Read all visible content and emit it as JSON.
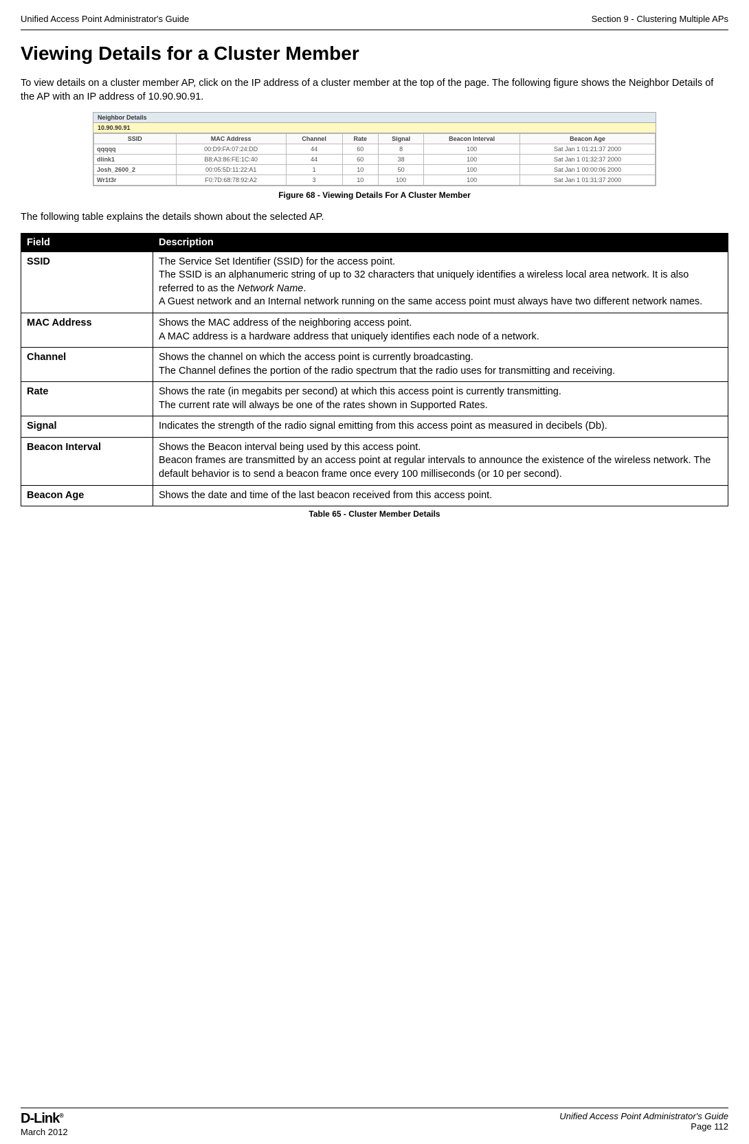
{
  "header": {
    "left": "Unified Access Point Administrator's Guide",
    "right": "Section 9 - Clustering Multiple APs"
  },
  "title": "Viewing Details for a Cluster Member",
  "intro": "To view details on a cluster member AP, click on the IP address of a cluster member at the top of the page. The following figure shows the Neighbor Details of the AP with an IP address of 10.90.90.91.",
  "figure": {
    "title": "Neighbor Details",
    "ip": "10.90.90.91",
    "cols": [
      "SSID",
      "MAC Address",
      "Channel",
      "Rate",
      "Signal",
      "Beacon Interval",
      "Beacon Age"
    ],
    "rows": [
      [
        "qqqqq",
        "00:D9:FA:07:24:DD",
        "44",
        "60",
        "8",
        "100",
        "Sat Jan 1 01:21:37 2000"
      ],
      [
        "dlink1",
        "B8:A3:86:FE:1C:40",
        "44",
        "60",
        "38",
        "100",
        "Sat Jan 1 01:32:37 2000"
      ],
      [
        "Josh_2600_2",
        "00:05:5D:11:22:A1",
        "1",
        "10",
        "50",
        "100",
        "Sat Jan 1 00:00:06 2000"
      ],
      [
        "Wr1t3r",
        "F0:7D:68:78:92:A2",
        "3",
        "10",
        "100",
        "100",
        "Sat Jan 1 01:31:37 2000"
      ]
    ],
    "caption": "Figure 68 - Viewing Details For A Cluster Member"
  },
  "after_figure": "The following table explains the details shown about the selected AP.",
  "table": {
    "headers": [
      "Field",
      "Description"
    ],
    "rows": [
      {
        "field": "SSID",
        "desc_html": "The Service Set Identifier (SSID) for the access point.<br>The SSID is an alphanumeric string of up to 32 characters that uniquely identifies a wireless local area network. It is also referred to as the <span class=\"italic\">Network Name</span>.<br>A Guest network and an Internal network running on the same access point must always have two different network names."
      },
      {
        "field": "MAC Address",
        "desc_html": "Shows the MAC address of the neighboring access point.<br>A MAC address is a hardware address that uniquely identifies each node of a network."
      },
      {
        "field": "Channel",
        "desc_html": "Shows the channel on which the access point is currently broadcasting.<br>The Channel defines the portion of the radio spectrum that the radio uses for transmitting and receiving."
      },
      {
        "field": "Rate",
        "desc_html": "Shows the rate (in megabits per second) at which this access point is currently transmitting.<br>The current rate will always be one of the rates shown in Supported Rates."
      },
      {
        "field": "Signal",
        "desc_html": "Indicates the strength of the radio signal emitting from this access point as measured in decibels (Db)."
      },
      {
        "field": "Beacon Interval",
        "desc_html": "Shows the Beacon interval being used by this access point.<br>Beacon frames are transmitted by an access point at regular intervals to announce the existence of the wireless network. The default behavior is to send a beacon frame once every 100 milliseconds (or 10 per second)."
      },
      {
        "field": "Beacon Age",
        "desc_html": "Shows the date and time of the last beacon received from this access point."
      }
    ],
    "caption": "Table 65 - Cluster Member Details"
  },
  "footer": {
    "logo": "D-Link",
    "date": "March 2012",
    "guide": "Unified Access Point Administrator's Guide",
    "page": "Page 112"
  }
}
